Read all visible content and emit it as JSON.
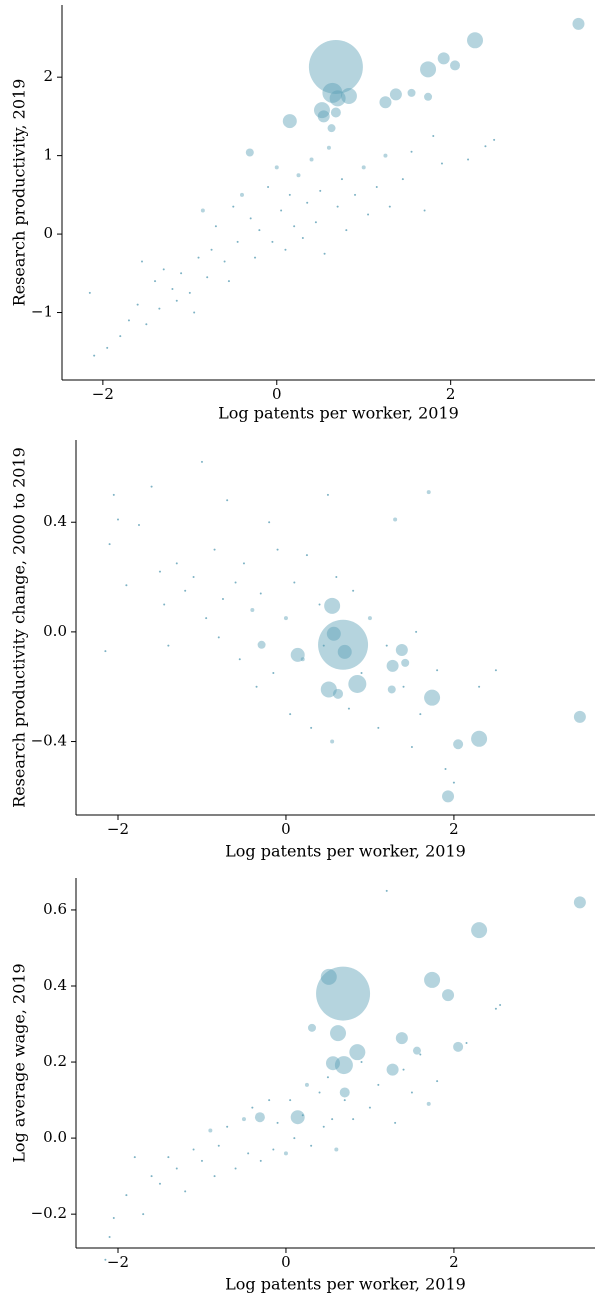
{
  "chart_data": [
    {
      "type": "scatter",
      "xlabel": "Log patents per worker, 2019",
      "ylabel": "Research productivity, 2019",
      "color": "#5c9fb5",
      "xlim": [
        -2.47,
        3.66
      ],
      "ylim": [
        -1.86,
        2.92
      ],
      "xticks": [
        {
          "value": -2,
          "label": "−2"
        },
        0,
        2
      ],
      "yticks": [
        {
          "value": -1,
          "label": "−1"
        },
        0,
        1,
        2
      ],
      "x": [
        -2.15,
        -2.1,
        -1.95,
        -1.8,
        -1.7,
        -1.6,
        -1.55,
        -1.5,
        -1.4,
        -1.35,
        -1.3,
        -1.2,
        -1.15,
        -1.1,
        -1.0,
        -0.95,
        -0.9,
        -0.85,
        -0.8,
        -0.75,
        -0.7,
        -0.6,
        -0.55,
        -0.5,
        -0.45,
        -0.4,
        -0.3,
        -0.25,
        -0.2,
        -0.1,
        -0.05,
        0.0,
        0.05,
        0.1,
        0.15,
        0.2,
        0.25,
        0.3,
        0.35,
        0.4,
        0.45,
        0.5,
        0.55,
        0.6,
        0.7,
        0.75,
        0.8,
        0.9,
        1.0,
        1.05,
        1.15,
        1.25,
        1.3,
        1.45,
        1.55,
        1.7,
        1.8,
        1.9,
        2.2,
        2.5,
        2.4,
        0.68,
        2.28,
        3.47,
        1.92,
        2.05,
        1.74,
        0.64,
        0.83,
        0.7,
        0.52,
        0.54,
        0.63,
        0.15,
        1.25,
        1.37,
        1.55,
        1.74,
        -0.31,
        0.68
      ],
      "y": [
        -0.75,
        -1.55,
        -1.45,
        -1.3,
        -1.1,
        -0.9,
        -0.35,
        -1.15,
        -0.6,
        -0.95,
        -0.45,
        -0.7,
        -0.85,
        -0.5,
        -0.75,
        -1.0,
        -0.3,
        0.3,
        -0.55,
        -0.2,
        0.1,
        -0.35,
        -0.6,
        0.35,
        -0.1,
        0.5,
        0.2,
        -0.3,
        0.05,
        0.6,
        -0.1,
        0.85,
        0.3,
        -0.2,
        0.5,
        0.1,
        0.75,
        -0.05,
        0.4,
        0.95,
        0.15,
        0.55,
        -0.25,
        1.1,
        0.35,
        0.7,
        0.05,
        0.5,
        0.85,
        0.25,
        0.6,
        1.0,
        0.35,
        0.7,
        1.05,
        0.3,
        1.25,
        0.9,
        0.95,
        1.2,
        1.12,
        2.13,
        2.47,
        2.68,
        2.24,
        2.15,
        2.1,
        1.8,
        1.76,
        1.73,
        1.58,
        1.5,
        1.35,
        1.44,
        1.68,
        1.78,
        1.8,
        1.75,
        1.04,
        1.55
      ],
      "sizes": [
        1,
        1,
        1,
        1,
        1,
        1,
        1,
        1,
        1,
        1,
        1,
        1,
        1,
        1,
        1,
        1,
        1,
        4,
        1,
        1,
        1,
        1,
        1,
        1,
        1,
        4,
        1,
        1,
        1,
        1,
        1,
        4,
        1,
        1,
        1,
        1,
        4,
        1,
        1,
        4,
        1,
        1,
        1,
        4,
        1,
        1,
        1,
        1,
        4,
        1,
        1,
        4,
        1,
        1,
        1,
        1,
        1,
        1,
        1,
        1,
        1,
        729,
        64,
        36,
        36,
        25,
        64,
        100,
        64,
        64,
        64,
        36,
        16,
        49,
        36,
        36,
        16,
        16,
        16,
        25
      ]
    },
    {
      "type": "scatter",
      "xlabel": "Log patents per worker, 2019",
      "ylabel": "Research productivity change, 2000 to 2019",
      "color": "#5c9fb5",
      "xlim": [
        -2.5,
        3.68
      ],
      "ylim": [
        -0.668,
        0.7
      ],
      "xticks": [
        {
          "value": -2,
          "label": "−2"
        },
        0,
        2
      ],
      "yticks": [
        {
          "value": -0.4,
          "label": "−0.4"
        },
        {
          "value": 0,
          "label": "0.0"
        },
        0.4
      ],
      "x": [
        -2.05,
        -2.1,
        -2.15,
        -2.0,
        -1.9,
        -1.75,
        -1.6,
        -1.5,
        -1.45,
        -1.4,
        -1.3,
        -1.2,
        -1.1,
        -1.0,
        -0.95,
        -0.85,
        -0.8,
        -0.75,
        -0.7,
        -0.6,
        -0.55,
        -0.5,
        -0.4,
        -0.35,
        -0.3,
        -0.2,
        -0.15,
        -0.1,
        0.0,
        0.05,
        0.1,
        0.2,
        0.25,
        0.3,
        0.4,
        0.45,
        0.5,
        0.55,
        0.6,
        0.75,
        0.8,
        0.9,
        1.0,
        1.1,
        1.2,
        1.3,
        1.4,
        1.5,
        1.55,
        1.6,
        1.7,
        1.8,
        1.9,
        2.0,
        2.5,
        2.3,
        0.68,
        3.5,
        2.3,
        2.05,
        1.93,
        1.74,
        0.55,
        0.51,
        0.85,
        0.57,
        0.7,
        0.14,
        1.38,
        1.27,
        1.42,
        0.62,
        1.26,
        -0.29
      ],
      "y": [
        0.5,
        0.32,
        -0.07,
        0.41,
        0.17,
        0.39,
        0.53,
        0.22,
        0.1,
        -0.05,
        0.25,
        0.15,
        0.2,
        0.62,
        0.05,
        0.3,
        -0.02,
        0.12,
        0.48,
        0.18,
        -0.1,
        0.25,
        0.08,
        -0.2,
        0.14,
        0.4,
        -0.15,
        0.3,
        0.05,
        -0.3,
        0.18,
        -0.1,
        0.28,
        -0.35,
        0.1,
        -0.05,
        0.5,
        -0.4,
        0.2,
        -0.28,
        0.15,
        -0.15,
        0.05,
        -0.35,
        -0.05,
        0.41,
        -0.2,
        -0.42,
        0.0,
        -0.3,
        0.51,
        -0.14,
        -0.5,
        -0.55,
        -0.14,
        -0.2,
        -0.047,
        -0.31,
        -0.39,
        -0.41,
        -0.6,
        -0.24,
        0.095,
        -0.21,
        -0.19,
        -0.007,
        -0.073,
        -0.084,
        -0.066,
        -0.124,
        -0.113,
        -0.226,
        -0.21,
        -0.047
      ],
      "sizes": [
        1,
        1,
        1,
        1,
        1,
        1,
        1,
        1,
        1,
        1,
        1,
        1,
        1,
        1,
        1,
        1,
        1,
        1,
        1,
        1,
        1,
        1,
        4,
        1,
        1,
        1,
        1,
        1,
        4,
        1,
        1,
        4,
        1,
        1,
        1,
        1,
        1,
        4,
        1,
        1,
        1,
        1,
        4,
        1,
        1,
        4,
        1,
        1,
        1,
        1,
        4,
        1,
        1,
        1,
        1,
        1,
        625,
        36,
        64,
        25,
        36,
        64,
        64,
        64,
        81,
        49,
        49,
        49,
        36,
        36,
        16,
        25,
        16,
        16
      ]
    },
    {
      "type": "scatter",
      "xlabel": "Log patents per worker, 2019",
      "ylabel": "Log average wage, 2019",
      "color": "#5c9fb5",
      "xlim": [
        -2.5,
        3.68
      ],
      "ylim": [
        -0.289,
        0.684
      ],
      "xticks": [
        {
          "value": -2,
          "label": "−2"
        },
        0,
        2
      ],
      "yticks": [
        {
          "value": -0.2,
          "label": "−0.2"
        },
        {
          "value": 0,
          "label": "0.0"
        },
        0.2,
        0.4,
        0.6
      ],
      "x": [
        -2.15,
        -2.1,
        -2.05,
        -1.9,
        -1.8,
        -1.7,
        -1.6,
        -1.5,
        -1.4,
        -1.3,
        -1.2,
        -1.1,
        -1.0,
        -0.9,
        -0.85,
        -0.8,
        -0.7,
        -0.6,
        -0.5,
        -0.45,
        -0.4,
        -0.3,
        -0.2,
        -0.15,
        -0.1,
        0.0,
        0.05,
        0.1,
        0.2,
        0.25,
        0.3,
        0.4,
        0.45,
        0.5,
        0.55,
        0.6,
        0.7,
        0.8,
        0.9,
        1.0,
        1.1,
        1.2,
        1.3,
        1.4,
        1.5,
        1.6,
        1.7,
        1.8,
        2.5,
        2.55,
        2.15,
        0.68,
        3.5,
        2.3,
        1.74,
        1.93,
        2.05,
        0.51,
        0.62,
        0.69,
        0.85,
        0.56,
        1.27,
        1.38,
        1.56,
        0.14,
        -0.31,
        0.31,
        0.7
      ],
      "y": [
        -0.32,
        -0.26,
        -0.21,
        -0.15,
        -0.05,
        -0.2,
        -0.1,
        -0.12,
        -0.05,
        -0.08,
        -0.14,
        -0.03,
        -0.06,
        0.02,
        -0.1,
        -0.02,
        0.03,
        -0.08,
        0.05,
        -0.04,
        0.08,
        -0.06,
        0.1,
        -0.03,
        0.04,
        -0.04,
        0.1,
        0.0,
        0.06,
        0.14,
        -0.02,
        0.12,
        0.03,
        0.16,
        0.05,
        -0.03,
        0.1,
        0.05,
        0.2,
        0.08,
        0.14,
        0.65,
        0.04,
        0.18,
        0.12,
        0.22,
        0.09,
        0.15,
        0.34,
        0.35,
        0.25,
        0.38,
        0.62,
        0.547,
        0.416,
        0.376,
        0.24,
        0.424,
        0.276,
        0.192,
        0.226,
        0.197,
        0.18,
        0.263,
        0.23,
        0.055,
        0.055,
        0.29,
        0.12
      ],
      "sizes": [
        1,
        1,
        1,
        1,
        1,
        1,
        1,
        1,
        1,
        1,
        1,
        1,
        1,
        4,
        1,
        1,
        1,
        1,
        4,
        1,
        1,
        1,
        1,
        1,
        1,
        4,
        1,
        1,
        1,
        4,
        1,
        1,
        1,
        1,
        1,
        4,
        1,
        1,
        1,
        1,
        1,
        1,
        1,
        1,
        1,
        1,
        4,
        1,
        1,
        1,
        1,
        729,
        36,
        64,
        64,
        36,
        25,
        64,
        64,
        81,
        64,
        49,
        36,
        36,
        16,
        49,
        25,
        16,
        25
      ]
    }
  ]
}
